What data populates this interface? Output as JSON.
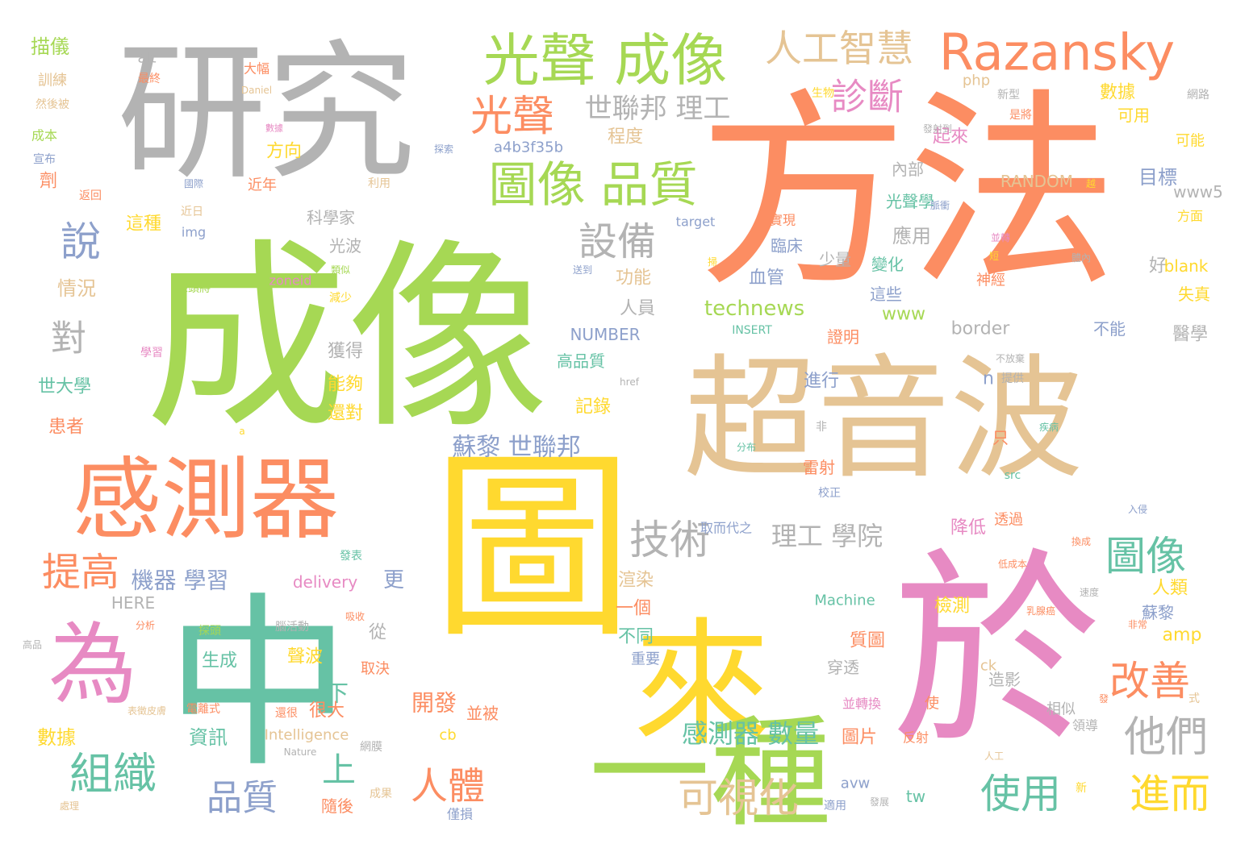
{
  "palette": {
    "gray": "#b3b3b3",
    "green": "#a6d854",
    "orange": "#fc8d62",
    "tan": "#e5c494",
    "yellow": "#ffd92f",
    "pink": "#e78ac3",
    "teal": "#66c2a5",
    "blue": "#8da0cb"
  },
  "words": [
    {
      "text": "方法",
      "color": "orange"
    },
    {
      "text": "成像",
      "color": "green"
    },
    {
      "text": "研究",
      "color": "gray"
    },
    {
      "text": "超音波",
      "color": "tan"
    },
    {
      "text": "於",
      "color": "pink"
    },
    {
      "text": "圖",
      "color": "yellow"
    },
    {
      "text": "中",
      "color": "teal"
    },
    {
      "text": "來",
      "color": "yellow"
    },
    {
      "text": "為",
      "color": "pink"
    },
    {
      "text": "感測器",
      "color": "orange"
    },
    {
      "text": "一種",
      "color": "green"
    },
    {
      "text": "光聲 成像",
      "color": "green"
    },
    {
      "text": "Razansky",
      "color": "orange"
    },
    {
      "text": "人工智慧",
      "color": "tan"
    },
    {
      "text": "圖像 品質",
      "color": "green"
    },
    {
      "text": "光聲",
      "color": "orange"
    },
    {
      "text": "診斷",
      "color": "pink"
    },
    {
      "text": "世聯邦 理工",
      "color": "gray"
    },
    {
      "text": "設備",
      "color": "gray"
    },
    {
      "text": "說",
      "color": "blue"
    },
    {
      "text": "對",
      "color": "gray"
    },
    {
      "text": "技術",
      "color": "gray"
    },
    {
      "text": "圖像",
      "color": "teal"
    },
    {
      "text": "改善",
      "color": "orange"
    },
    {
      "text": "他們",
      "color": "gray"
    },
    {
      "text": "進而",
      "color": "yellow"
    },
    {
      "text": "使用",
      "color": "teal"
    },
    {
      "text": "可視化",
      "color": "tan"
    },
    {
      "text": "人體",
      "color": "orange"
    },
    {
      "text": "組織",
      "color": "teal"
    },
    {
      "text": "品質",
      "color": "blue"
    },
    {
      "text": "提高",
      "color": "orange"
    },
    {
      "text": "蘇黎 世聯邦",
      "color": "blue"
    },
    {
      "text": "感測器 數量",
      "color": "teal"
    },
    {
      "text": "理工 學院",
      "color": "gray"
    },
    {
      "text": "機器 學習",
      "color": "blue"
    },
    {
      "text": "上",
      "color": "teal"
    },
    {
      "text": "下",
      "color": "teal"
    },
    {
      "text": "開發",
      "color": "orange"
    },
    {
      "text": "更",
      "color": "blue"
    },
    {
      "text": "描儀",
      "color": "green"
    },
    {
      "text": "alt",
      "color": "gray"
    },
    {
      "text": "訓練",
      "color": "tan"
    },
    {
      "text": "然後被",
      "color": "tan"
    },
    {
      "text": "成本",
      "color": "green"
    },
    {
      "text": "宣布",
      "color": "blue"
    },
    {
      "text": "劑",
      "color": "orange"
    },
    {
      "text": "情況",
      "color": "tan"
    },
    {
      "text": "世大學",
      "color": "teal"
    },
    {
      "text": "患者",
      "color": "orange"
    },
    {
      "text": "數據",
      "color": "yellow"
    },
    {
      "text": "資訊",
      "color": "teal"
    },
    {
      "text": "這種",
      "color": "yellow"
    },
    {
      "text": "方向",
      "color": "yellow"
    },
    {
      "text": "近年",
      "color": "orange"
    },
    {
      "text": "近日",
      "color": "tan"
    },
    {
      "text": "img",
      "color": "blue"
    },
    {
      "text": "大幅",
      "color": "orange"
    },
    {
      "text": "最終",
      "color": "orange"
    },
    {
      "text": "Daniel",
      "color": "tan"
    },
    {
      "text": "返回",
      "color": "orange"
    },
    {
      "text": "國際",
      "color": "blue"
    },
    {
      "text": "利用",
      "color": "tan"
    },
    {
      "text": "探索",
      "color": "blue"
    },
    {
      "text": "a4b3f35b",
      "color": "blue"
    },
    {
      "text": "程度",
      "color": "tan"
    },
    {
      "text": "科學家",
      "color": "gray"
    },
    {
      "text": "光波",
      "color": "gray"
    },
    {
      "text": "zoneid",
      "color": "pink"
    },
    {
      "text": "減少",
      "color": "yellow"
    },
    {
      "text": "類似",
      "color": "green"
    },
    {
      "text": "探頭將",
      "color": "green"
    },
    {
      "text": "送到",
      "color": "blue"
    },
    {
      "text": "功能",
      "color": "tan"
    },
    {
      "text": "人員",
      "color": "gray"
    },
    {
      "text": "NUMBER",
      "color": "blue"
    },
    {
      "text": "獲得",
      "color": "gray"
    },
    {
      "text": "高品質",
      "color": "teal"
    },
    {
      "text": "能夠",
      "color": "yellow"
    },
    {
      "text": "記錄",
      "color": "yellow"
    },
    {
      "text": "還對",
      "color": "yellow"
    },
    {
      "text": "學習",
      "color": "pink"
    },
    {
      "text": "HERE",
      "color": "gray"
    },
    {
      "text": "delivery",
      "color": "pink"
    },
    {
      "text": "從",
      "color": "gray"
    },
    {
      "text": "取決",
      "color": "orange"
    },
    {
      "text": "探頭",
      "color": "green"
    },
    {
      "text": "生成",
      "color": "teal"
    },
    {
      "text": "聲波",
      "color": "yellow"
    },
    {
      "text": "腦活動",
      "color": "gray"
    },
    {
      "text": "吸收",
      "color": "orange"
    },
    {
      "text": "發表",
      "color": "teal"
    },
    {
      "text": "分析",
      "color": "orange"
    },
    {
      "text": "高品",
      "color": "gray"
    },
    {
      "text": "電離式",
      "color": "orange"
    },
    {
      "text": "表徵皮膚",
      "color": "tan"
    },
    {
      "text": "還很",
      "color": "orange"
    },
    {
      "text": "很大",
      "color": "orange"
    },
    {
      "text": "並被",
      "color": "orange"
    },
    {
      "text": "cb",
      "color": "yellow"
    },
    {
      "text": "Intelligence",
      "color": "tan"
    },
    {
      "text": "Nature",
      "color": "gray"
    },
    {
      "text": "網膜",
      "color": "gray"
    },
    {
      "text": "成果",
      "color": "tan"
    },
    {
      "text": "隨後",
      "color": "orange"
    },
    {
      "text": "處理",
      "color": "tan"
    },
    {
      "text": "僅損",
      "color": "blue"
    },
    {
      "text": "avw",
      "color": "blue"
    },
    {
      "text": "php",
      "color": "tan"
    },
    {
      "text": "technews",
      "color": "green"
    },
    {
      "text": "血管",
      "color": "blue"
    },
    {
      "text": "應用",
      "color": "gray"
    },
    {
      "text": "變化",
      "color": "teal"
    },
    {
      "text": "這些",
      "color": "blue"
    },
    {
      "text": "www",
      "color": "green"
    },
    {
      "text": "證明",
      "color": "orange"
    },
    {
      "text": "INSERT",
      "color": "teal"
    },
    {
      "text": "border",
      "color": "gray"
    },
    {
      "text": "進行",
      "color": "blue"
    },
    {
      "text": "臨床",
      "color": "blue"
    },
    {
      "text": "掃",
      "color": "yellow"
    },
    {
      "text": "實現",
      "color": "orange"
    },
    {
      "text": "target",
      "color": "blue"
    },
    {
      "text": "href",
      "color": "gray"
    },
    {
      "text": "取而代之",
      "color": "blue"
    },
    {
      "text": "a",
      "color": "yellow"
    },
    {
      "text": "渲染",
      "color": "tan"
    },
    {
      "text": "一個",
      "color": "orange"
    },
    {
      "text": "不同",
      "color": "teal"
    },
    {
      "text": "重要",
      "color": "blue"
    },
    {
      "text": "Machine",
      "color": "teal"
    },
    {
      "text": "質圖",
      "color": "orange"
    },
    {
      "text": "穿透",
      "color": "gray"
    },
    {
      "text": "檢測",
      "color": "yellow"
    },
    {
      "text": "造影",
      "color": "gray"
    },
    {
      "text": "雷射",
      "color": "orange"
    },
    {
      "text": "校正",
      "color": "blue"
    },
    {
      "text": "降低",
      "color": "pink"
    },
    {
      "text": "透過",
      "color": "orange"
    },
    {
      "text": "非",
      "color": "gray"
    },
    {
      "text": "分布",
      "color": "teal"
    },
    {
      "text": "並轉換",
      "color": "pink"
    },
    {
      "text": "相似",
      "color": "gray"
    },
    {
      "text": "使",
      "color": "orange"
    },
    {
      "text": "ck",
      "color": "tan"
    },
    {
      "text": "tw",
      "color": "teal"
    },
    {
      "text": "適用",
      "color": "blue"
    },
    {
      "text": "發展",
      "color": "gray"
    },
    {
      "text": "反射",
      "color": "orange"
    },
    {
      "text": "人工",
      "color": "tan"
    },
    {
      "text": "新",
      "color": "yellow"
    },
    {
      "text": "領導",
      "color": "gray"
    },
    {
      "text": "發",
      "color": "orange"
    },
    {
      "text": "式",
      "color": "tan"
    },
    {
      "text": "圖片",
      "color": "orange"
    },
    {
      "text": "短",
      "color": "yellow"
    },
    {
      "text": "數據",
      "color": "yellow"
    },
    {
      "text": "目標",
      "color": "blue"
    },
    {
      "text": "可用",
      "color": "yellow"
    },
    {
      "text": "可能",
      "color": "yellow"
    },
    {
      "text": "RANDOM",
      "color": "tan"
    },
    {
      "text": "www5",
      "color": "gray"
    },
    {
      "text": "方面",
      "color": "yellow"
    },
    {
      "text": "好",
      "color": "gray"
    },
    {
      "text": "blank",
      "color": "yellow"
    },
    {
      "text": "失真",
      "color": "yellow"
    },
    {
      "text": "醫學",
      "color": "gray"
    },
    {
      "text": "不能",
      "color": "blue"
    },
    {
      "text": "人類",
      "color": "yellow"
    },
    {
      "text": "蘇黎",
      "color": "blue"
    },
    {
      "text": "amp",
      "color": "yellow"
    },
    {
      "text": "網路",
      "color": "gray"
    },
    {
      "text": "生物",
      "color": "yellow"
    },
    {
      "text": "新型",
      "color": "gray"
    },
    {
      "text": "是將",
      "color": "orange"
    },
    {
      "text": "起來",
      "color": "pink"
    },
    {
      "text": "發射到",
      "color": "gray"
    },
    {
      "text": "越",
      "color": "yellow"
    },
    {
      "text": "體內",
      "color": "gray"
    },
    {
      "text": "並轉",
      "color": "pink"
    },
    {
      "text": "少量",
      "color": "gray"
    },
    {
      "text": "內部",
      "color": "gray"
    },
    {
      "text": "光聲學",
      "color": "teal"
    },
    {
      "text": "脈衝",
      "color": "blue"
    },
    {
      "text": "神經",
      "color": "orange"
    },
    {
      "text": "不放棄",
      "color": "gray"
    },
    {
      "text": "n",
      "color": "blue"
    },
    {
      "text": "提供",
      "color": "gray"
    },
    {
      "text": "只",
      "color": "orange"
    },
    {
      "text": "src",
      "color": "teal"
    },
    {
      "text": "疾病",
      "color": "teal"
    },
    {
      "text": "入侵",
      "color": "blue"
    },
    {
      "text": "換成",
      "color": "orange"
    },
    {
      "text": "低成本",
      "color": "orange"
    },
    {
      "text": "速度",
      "color": "gray"
    },
    {
      "text": "乳腺癌",
      "color": "orange"
    },
    {
      "text": "非常",
      "color": "orange"
    },
    {
      "text": "數據",
      "color": "pink"
    },
    {
      "text": "自行",
      "color": "yellow"
    },
    {
      "text": "商陸光譜",
      "color": "orange"
    }
  ]
}
